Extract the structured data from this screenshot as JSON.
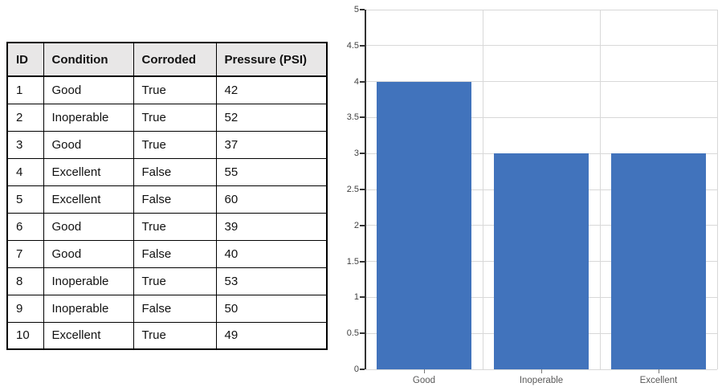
{
  "table": {
    "headers": [
      "ID",
      "Condition",
      "Corroded",
      "Pressure (PSI)"
    ],
    "rows": [
      [
        "1",
        "Good",
        "True",
        "42"
      ],
      [
        "2",
        "Inoperable",
        "True",
        "52"
      ],
      [
        "3",
        "Good",
        "True",
        "37"
      ],
      [
        "4",
        "Excellent",
        "False",
        "55"
      ],
      [
        "5",
        "Excellent",
        "False",
        "60"
      ],
      [
        "6",
        "Good",
        "True",
        "39"
      ],
      [
        "7",
        "Good",
        "False",
        "40"
      ],
      [
        "8",
        "Inoperable",
        "True",
        "53"
      ],
      [
        "9",
        "Inoperable",
        "False",
        "50"
      ],
      [
        "10",
        "Excellent",
        "True",
        "49"
      ]
    ],
    "header_bg": "#E8E7E7",
    "border_color": "#000000"
  },
  "chart_data": {
    "type": "bar",
    "categories": [
      "Good",
      "Inoperable",
      "Excellent"
    ],
    "values": [
      4,
      3,
      3
    ],
    "title": "",
    "xlabel": "",
    "ylabel": "",
    "ylim": [
      0,
      5
    ],
    "ytick_step": 0.5,
    "ytick_labels": [
      "0",
      "0.5",
      "1",
      "1.5",
      "2",
      "2.5",
      "3",
      "3.5",
      "4",
      "4.5",
      "5"
    ],
    "grid": true,
    "legend": false,
    "bar_color": "#4173BC",
    "grid_color": "#D8D8D8",
    "axis_color": "#333333",
    "ytick_label_color": "#404040",
    "xtick_label_color": "#595959",
    "xtick_mark_color": "#777777"
  }
}
